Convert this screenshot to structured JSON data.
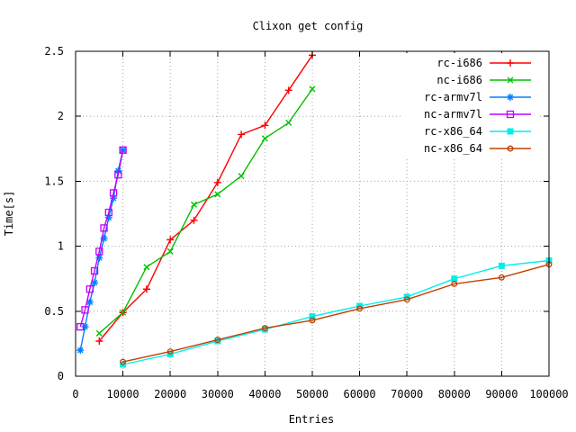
{
  "window": {
    "background": "#ffffff",
    "text_color": "#000000"
  },
  "chart_data": {
    "type": "line",
    "title": "Clixon get config",
    "xlabel": "Entries",
    "ylabel": "Time[s]",
    "xlim": [
      0,
      100000
    ],
    "ylim": [
      0,
      2.5
    ],
    "xticks": [
      0,
      10000,
      20000,
      30000,
      40000,
      50000,
      60000,
      70000,
      80000,
      90000,
      100000
    ],
    "xtick_labels": [
      "0",
      "10000",
      "20000",
      "30000",
      "40000",
      "50000",
      "60000",
      "70000",
      "80000",
      "90000",
      "100000"
    ],
    "yticks": [
      0,
      0.5,
      1,
      1.5,
      2,
      2.5
    ],
    "ytick_labels": [
      "0",
      "0.5",
      "1",
      "1.5",
      "2",
      "2.5"
    ],
    "grid": true,
    "grid_style": "dotted",
    "grid_color": "#a6a6a6",
    "border_color": "#000000",
    "legend_position": "top-right-inside",
    "series": [
      {
        "name": "rc-i686",
        "color": "#ff0000",
        "marker": "plus",
        "x": [
          5000,
          10000,
          15000,
          20000,
          25000,
          30000,
          35000,
          40000,
          45000,
          50000
        ],
        "y": [
          0.27,
          0.49,
          0.67,
          1.05,
          1.2,
          1.49,
          1.86,
          1.93,
          2.2,
          2.47
        ]
      },
      {
        "name": "nc-i686",
        "color": "#00c000",
        "marker": "cross",
        "x": [
          5000,
          10000,
          15000,
          20000,
          25000,
          30000,
          35000,
          40000,
          45000,
          50000
        ],
        "y": [
          0.33,
          0.49,
          0.84,
          0.96,
          1.32,
          1.4,
          1.54,
          1.83,
          1.95,
          2.21
        ]
      },
      {
        "name": "rc-armv7l",
        "color": "#0080ff",
        "marker": "asterisk",
        "x": [
          1000,
          2000,
          3000,
          4000,
          5000,
          6000,
          7000,
          8000,
          9000,
          10000
        ],
        "y": [
          0.2,
          0.38,
          0.57,
          0.72,
          0.91,
          1.06,
          1.22,
          1.37,
          1.58,
          1.74
        ]
      },
      {
        "name": "nc-armv7l",
        "color": "#c000ff",
        "marker": "open-square",
        "x": [
          1000,
          2000,
          3000,
          4000,
          5000,
          6000,
          7000,
          8000,
          9000,
          10000
        ],
        "y": [
          0.38,
          0.51,
          0.67,
          0.81,
          0.96,
          1.14,
          1.26,
          1.41,
          1.55,
          1.74
        ]
      },
      {
        "name": "rc-x86_64",
        "color": "#00eeee",
        "marker": "filled-square",
        "x": [
          10000,
          20000,
          30000,
          40000,
          50000,
          60000,
          70000,
          80000,
          90000,
          100000
        ],
        "y": [
          0.09,
          0.17,
          0.27,
          0.36,
          0.46,
          0.54,
          0.61,
          0.75,
          0.85,
          0.89
        ]
      },
      {
        "name": "nc-x86_64",
        "color": "#c04000",
        "marker": "open-circle",
        "x": [
          10000,
          20000,
          30000,
          40000,
          50000,
          60000,
          70000,
          80000,
          90000,
          100000
        ],
        "y": [
          0.11,
          0.19,
          0.28,
          0.37,
          0.43,
          0.52,
          0.59,
          0.71,
          0.76,
          0.86
        ]
      }
    ]
  }
}
